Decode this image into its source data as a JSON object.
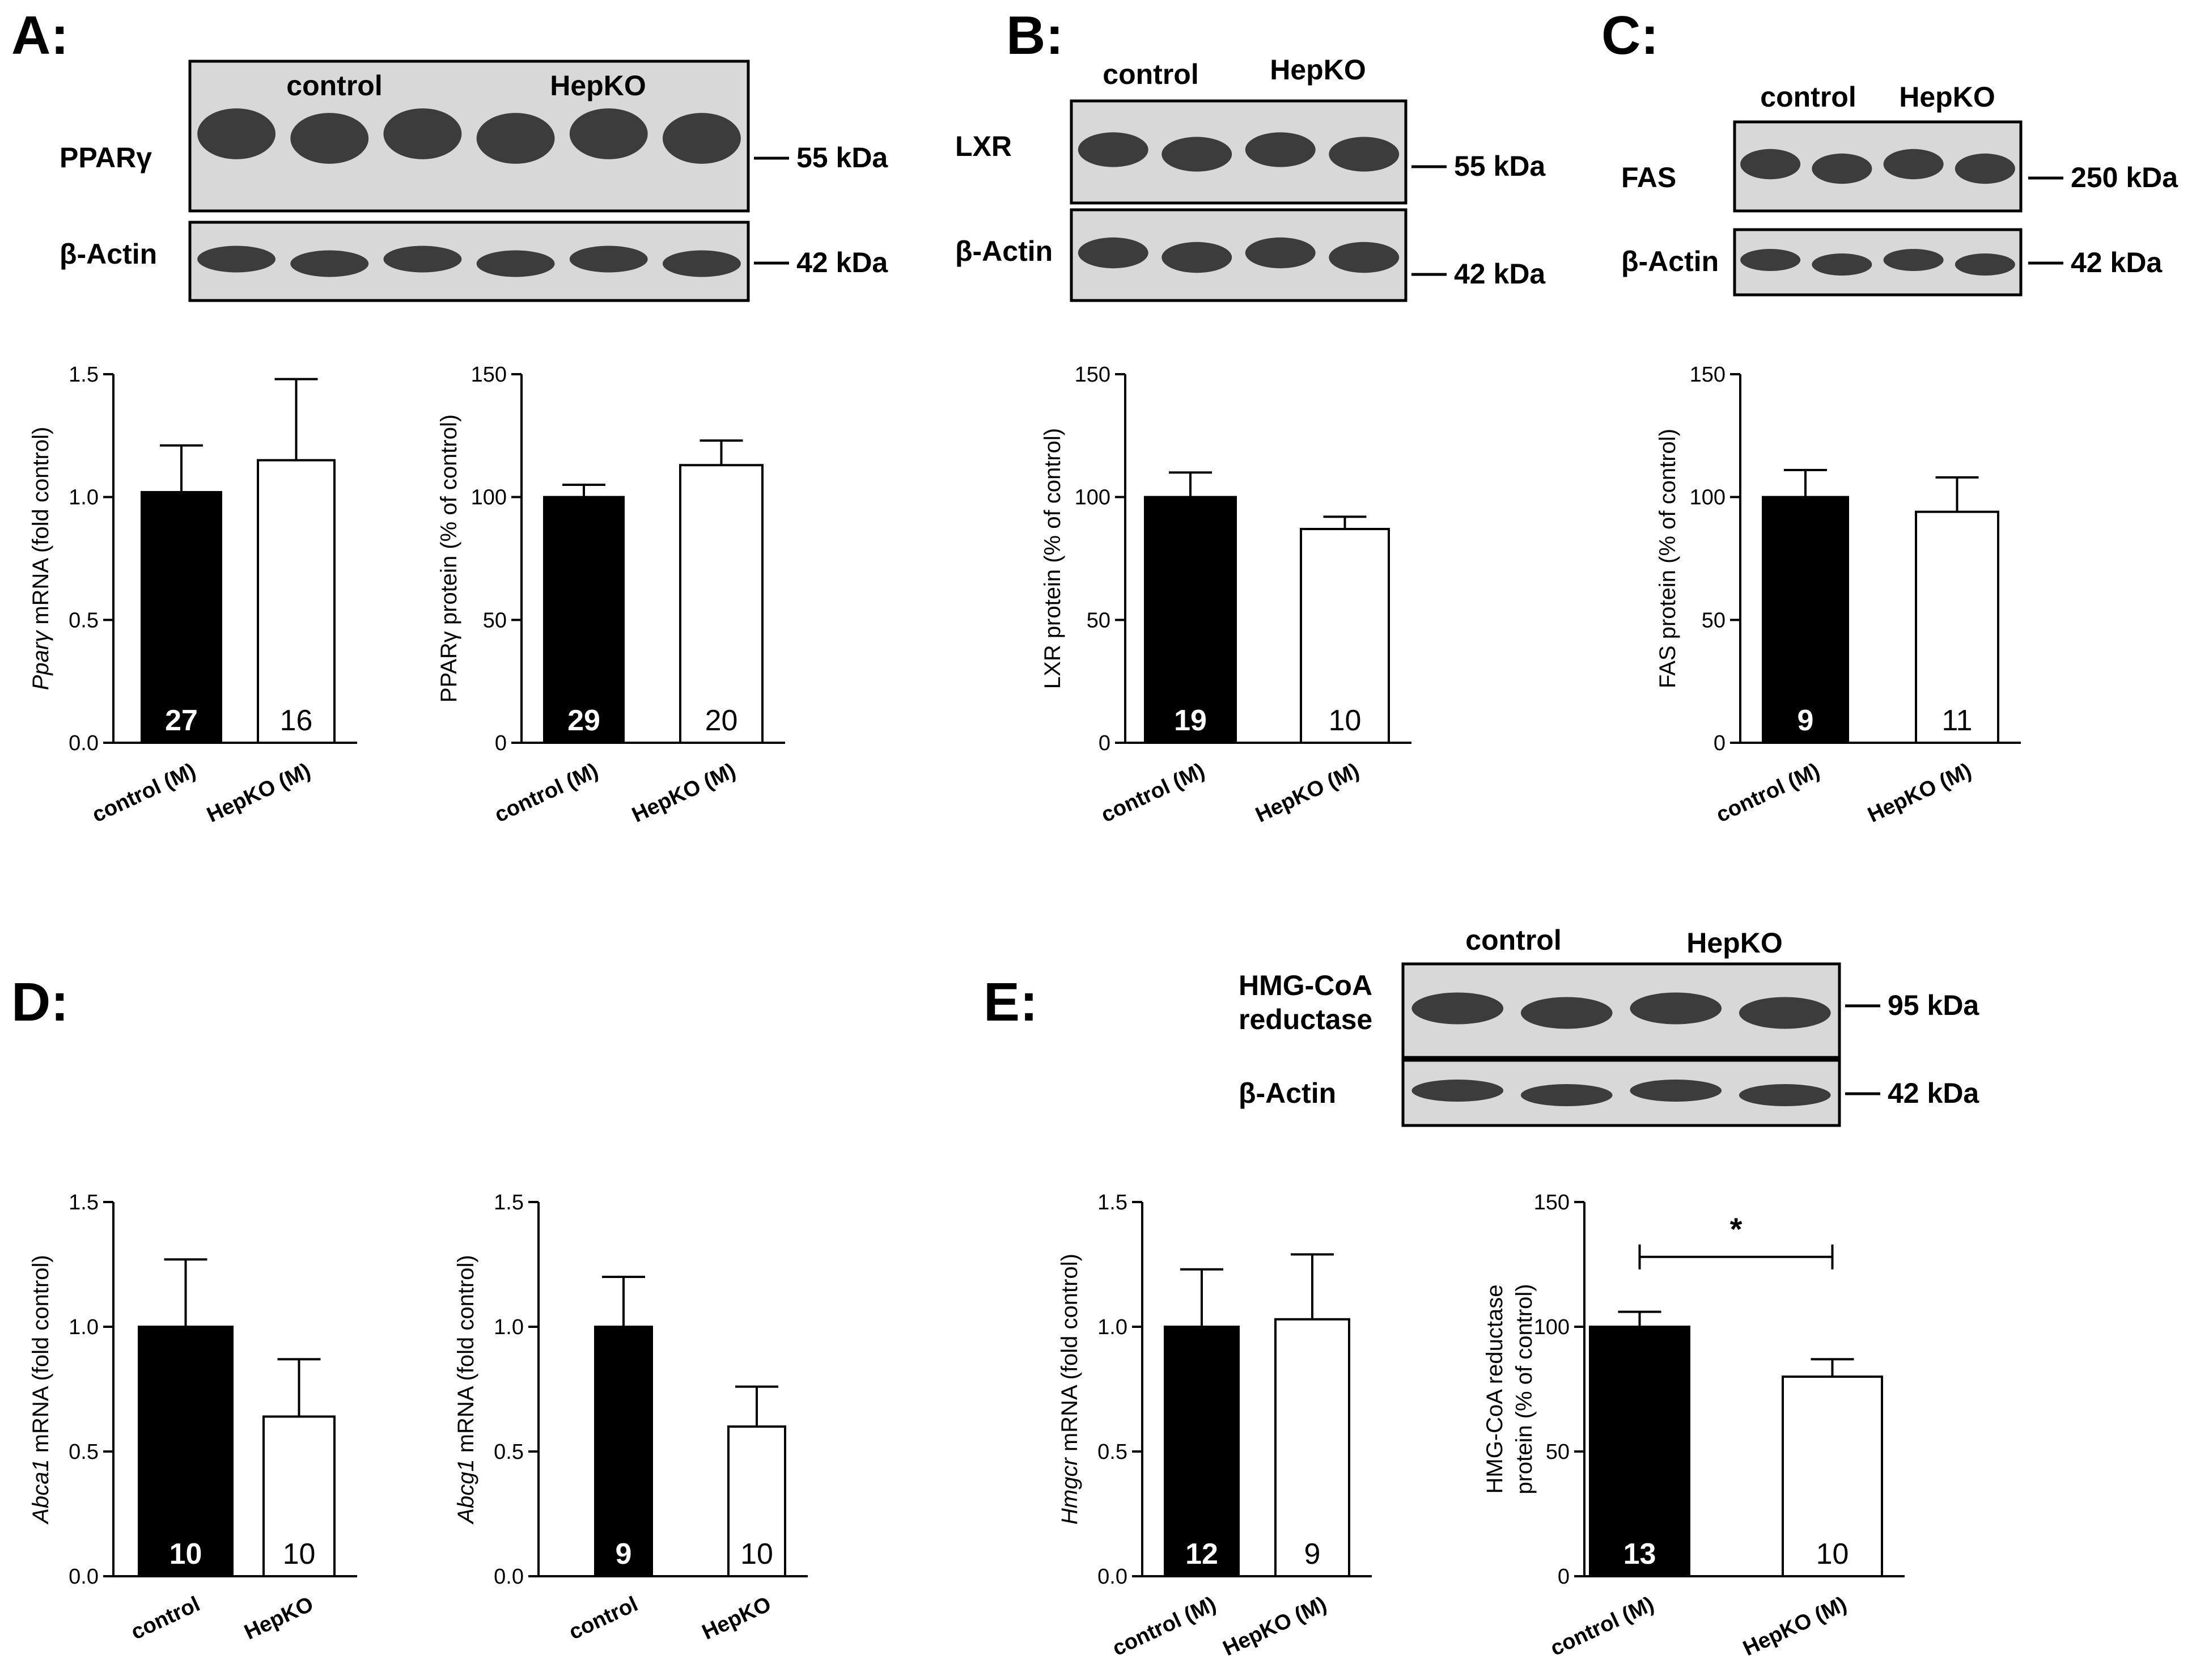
{
  "panels": [
    {
      "id": "A",
      "letter": "A:",
      "blots": [
        {
          "label": "PPARγ",
          "kda": "55 kDa",
          "header_left": "control",
          "header_right": "HepKO"
        },
        {
          "label": "β-Actin",
          "kda": "42 kDa"
        }
      ]
    },
    {
      "id": "B",
      "letter": "B:",
      "blots": [
        {
          "label": "LXR",
          "kda": "55 kDa",
          "header_left": "control",
          "header_right": "HepKO"
        },
        {
          "label": "β-Actin",
          "kda": "42 kDa"
        }
      ]
    },
    {
      "id": "C",
      "letter": "C:",
      "blots": [
        {
          "label": "FAS",
          "kda": "250 kDa",
          "header_left": "control",
          "header_right": "HepKO"
        },
        {
          "label": "β-Actin",
          "kda": "42 kDa"
        }
      ]
    },
    {
      "id": "D",
      "letter": "D:",
      "blots": []
    },
    {
      "id": "E",
      "letter": "E:",
      "blots": [
        {
          "label": "HMG-CoA",
          "label2": "reductase",
          "kda": "95 kDa",
          "header_left": "control",
          "header_right": "HepKO"
        },
        {
          "label": "β-Actin",
          "kda": "42 kDa"
        }
      ]
    }
  ],
  "chart_data": [
    {
      "id": "A1",
      "type": "bar",
      "ylabel_italic": "Pparγ",
      "ylabel": " mRNA (fold control)",
      "ylim": [
        0,
        1.5
      ],
      "yticks": [
        "0.0",
        "0.5",
        "1.0",
        "1.5"
      ],
      "categories": [
        "control (M)",
        "HepKO (M)"
      ],
      "values": [
        1.02,
        1.15
      ],
      "errors": [
        0.19,
        0.33
      ],
      "n": [
        "27",
        "16"
      ]
    },
    {
      "id": "A2",
      "type": "bar",
      "ylabel": "PPARγ protein (% of control)",
      "ylim": [
        0,
        150
      ],
      "yticks": [
        "0",
        "50",
        "100",
        "150"
      ],
      "categories": [
        "control (M)",
        "HepKO (M)"
      ],
      "values": [
        100,
        113
      ],
      "errors": [
        5,
        10
      ],
      "n": [
        "29",
        "20"
      ]
    },
    {
      "id": "B1",
      "type": "bar",
      "ylabel": "LXR protein (% of control)",
      "ylim": [
        0,
        150
      ],
      "yticks": [
        "0",
        "50",
        "100",
        "150"
      ],
      "categories": [
        "control (M)",
        "HepKO (M)"
      ],
      "values": [
        100,
        87
      ],
      "errors": [
        10,
        5
      ],
      "n": [
        "19",
        "10"
      ]
    },
    {
      "id": "C1",
      "type": "bar",
      "ylabel": "FAS protein (% of control)",
      "ylim": [
        0,
        150
      ],
      "yticks": [
        "0",
        "50",
        "100",
        "150"
      ],
      "categories": [
        "control (M)",
        "HepKO (M)"
      ],
      "values": [
        100,
        94
      ],
      "errors": [
        11,
        14
      ],
      "n": [
        "9",
        "11"
      ]
    },
    {
      "id": "D1",
      "type": "bar",
      "ylabel_italic": "Abca1",
      "ylabel": " mRNA (fold control)",
      "ylim": [
        0,
        1.5
      ],
      "yticks": [
        "0.0",
        "0.5",
        "1.0",
        "1.5"
      ],
      "categories": [
        "control",
        "HepKO"
      ],
      "values": [
        1.0,
        0.64
      ],
      "errors": [
        0.27,
        0.23
      ],
      "n": [
        "10",
        "10"
      ]
    },
    {
      "id": "D2",
      "type": "bar",
      "ylabel_italic": "Abcg1",
      "ylabel": " mRNA (fold control)",
      "ylim": [
        0,
        1.5
      ],
      "yticks": [
        "0.0",
        "0.5",
        "1.0",
        "1.5"
      ],
      "categories": [
        "control",
        "HepKO"
      ],
      "values": [
        1.0,
        0.6
      ],
      "errors": [
        0.2,
        0.16
      ],
      "n": [
        "9",
        "10"
      ]
    },
    {
      "id": "E1",
      "type": "bar",
      "ylabel_italic": "Hmgcr",
      "ylabel": " mRNA (fold control)",
      "ylim": [
        0,
        1.5
      ],
      "yticks": [
        "0.0",
        "0.5",
        "1.0",
        "1.5"
      ],
      "categories": [
        "control (M)",
        "HepKO (M)"
      ],
      "values": [
        1.0,
        1.03
      ],
      "errors": [
        0.23,
        0.26
      ],
      "n": [
        "12",
        "9"
      ]
    },
    {
      "id": "E2",
      "type": "bar",
      "ylabel": "HMG-CoA reductase",
      "ylabel2": "protein (% of control)",
      "ylim": [
        0,
        150
      ],
      "yticks": [
        "0",
        "50",
        "100",
        "150"
      ],
      "categories": [
        "control (M)",
        "HepKO (M)"
      ],
      "values": [
        100,
        80
      ],
      "errors": [
        6,
        7
      ],
      "n": [
        "13",
        "10"
      ],
      "significance": "*"
    }
  ]
}
